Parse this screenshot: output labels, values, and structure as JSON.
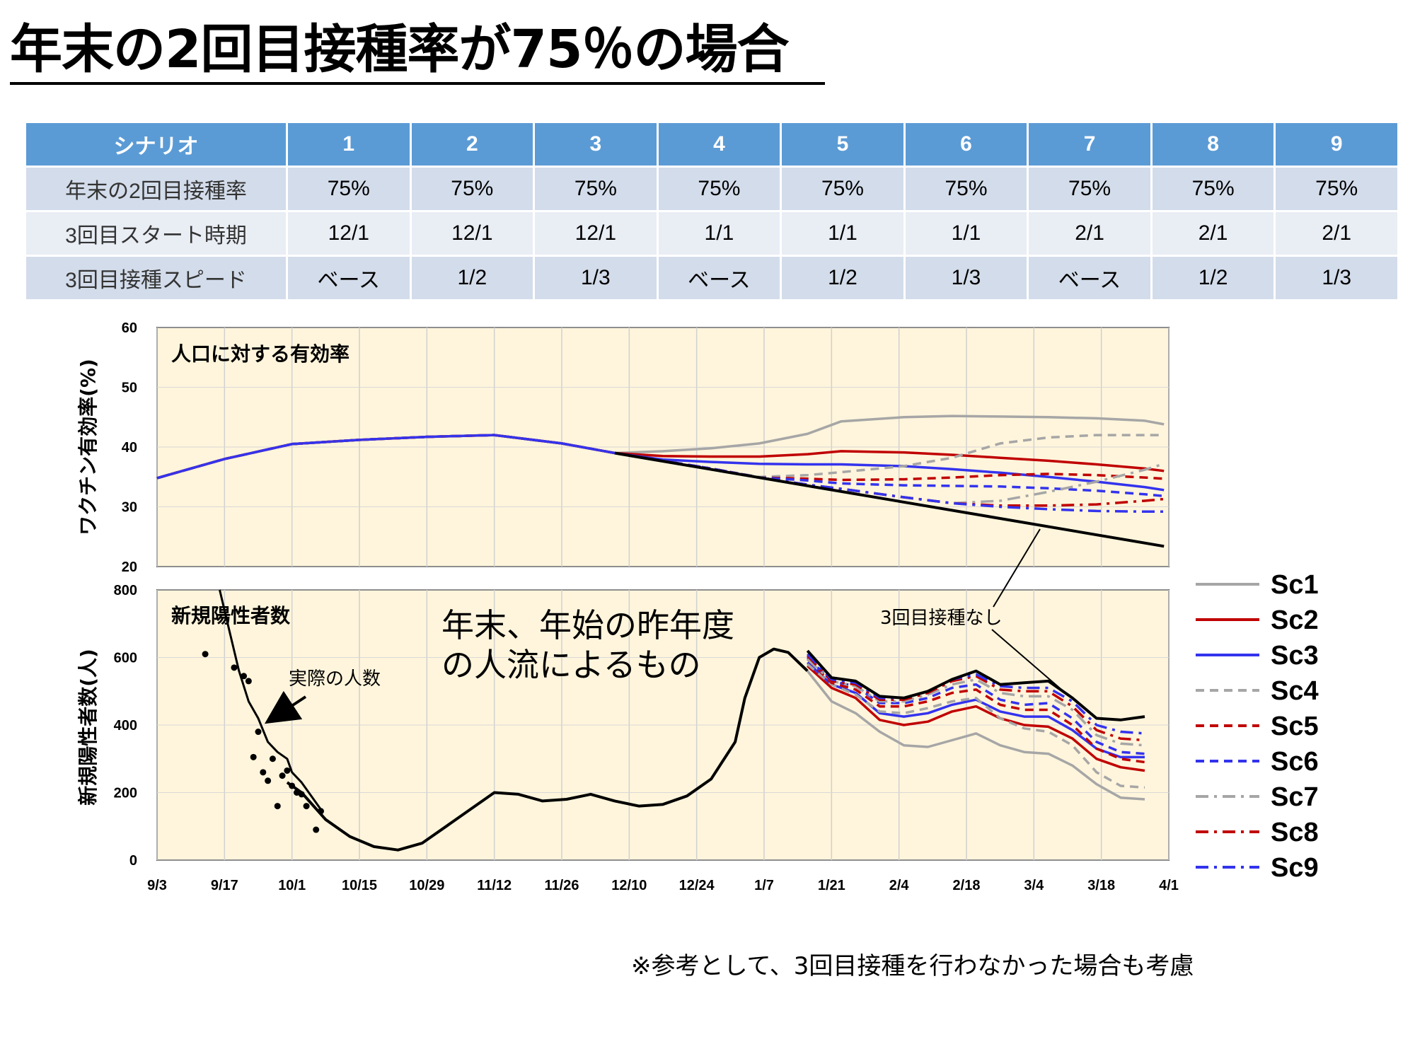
{
  "title": "年末の2回目接種率が75％の場合",
  "table": {
    "header": [
      "シナリオ",
      "1",
      "2",
      "3",
      "4",
      "5",
      "6",
      "7",
      "8",
      "9"
    ],
    "rows": [
      [
        "年末の2回目接種率",
        "75%",
        "75%",
        "75%",
        "75%",
        "75%",
        "75%",
        "75%",
        "75%",
        "75%"
      ],
      [
        "3回目スタート時期",
        "12/1",
        "12/1",
        "12/1",
        "1/1",
        "1/1",
        "1/1",
        "2/1",
        "2/1",
        "2/1"
      ],
      [
        "3回目接種スピード",
        "ベース",
        "1/2",
        "1/3",
        "ベース",
        "1/2",
        "1/3",
        "ベース",
        "1/2",
        "1/3"
      ]
    ]
  },
  "footnote": "※参考として、3回目接種を行わなかった場合も考慮",
  "colors": {
    "header_bg": "#5b9bd5",
    "panel_bg": "#fff5dc",
    "gray": "#a6a6a6",
    "red": "#c00000",
    "blue": "#3333ee",
    "black": "#000000"
  },
  "chart_data": [
    {
      "type": "line",
      "panel_title": "人口に対する有効率",
      "ylabel": "ワクチン有効率(%)",
      "ylim": [
        20,
        60
      ],
      "yticks": [
        20,
        30,
        40,
        50,
        60
      ],
      "xticks": [
        "9/3",
        "9/17",
        "10/1",
        "10/15",
        "10/29",
        "11/12",
        "11/26",
        "12/10",
        "12/24",
        "1/7",
        "1/21",
        "2/4",
        "2/18",
        "3/4",
        "3/18",
        "4/1"
      ],
      "x_days_range": [
        0,
        210
      ],
      "grid": true,
      "annotations": [
        {
          "text": "3回目接種なし",
          "points_to": "no-3rd-dose line"
        }
      ],
      "series": [
        {
          "name": "Sc1",
          "color": "gray",
          "dash": "solid",
          "x": [
            0,
            14,
            28,
            42,
            56,
            70,
            84,
            95,
            105,
            115,
            125,
            135,
            142,
            155,
            165,
            175,
            185,
            195,
            205,
            209
          ],
          "y": [
            34.8,
            38,
            40.5,
            41.2,
            41.7,
            42,
            40.6,
            39,
            39.3,
            39.8,
            40.6,
            42.2,
            44.3,
            45,
            45.2,
            45.1,
            45,
            44.8,
            44.4,
            43.8
          ]
        },
        {
          "name": "Sc2",
          "color": "red",
          "dash": "solid",
          "x": [
            0,
            14,
            28,
            42,
            56,
            70,
            84,
            95,
            105,
            115,
            125,
            135,
            142,
            155,
            165,
            175,
            185,
            195,
            205,
            209
          ],
          "y": [
            34.8,
            38,
            40.5,
            41.2,
            41.7,
            42,
            40.6,
            39,
            38.5,
            38.4,
            38.4,
            38.8,
            39.3,
            39.1,
            38.7,
            38.2,
            37.7,
            37.1,
            36.4,
            36
          ]
        },
        {
          "name": "Sc3",
          "color": "blue",
          "dash": "solid",
          "x": [
            0,
            14,
            28,
            42,
            56,
            70,
            84,
            95,
            105,
            115,
            125,
            135,
            142,
            155,
            165,
            175,
            185,
            195,
            205,
            209
          ],
          "y": [
            34.8,
            38,
            40.5,
            41.2,
            41.7,
            42,
            40.6,
            39,
            37.9,
            37.5,
            37.2,
            37.1,
            37.1,
            36.8,
            36.3,
            35.7,
            35,
            34.2,
            33.3,
            32.8
          ]
        },
        {
          "name": "Sc4",
          "color": "gray",
          "dash": "dash",
          "x": [
            0,
            14,
            28,
            42,
            56,
            70,
            84,
            95,
            105,
            115,
            125,
            135,
            142,
            155,
            165,
            175,
            185,
            195,
            205,
            209
          ],
          "y": [
            34.8,
            38,
            40.5,
            41.2,
            41.7,
            42,
            40.6,
            39,
            37.7,
            36.4,
            35,
            35.3,
            35.8,
            36.8,
            38.2,
            40.6,
            41.6,
            42,
            42,
            42
          ]
        },
        {
          "name": "Sc5",
          "color": "red",
          "dash": "dash",
          "x": [
            0,
            14,
            28,
            42,
            56,
            70,
            84,
            95,
            105,
            115,
            125,
            135,
            142,
            155,
            165,
            175,
            185,
            195,
            205,
            209
          ],
          "y": [
            34.8,
            38,
            40.5,
            41.2,
            41.7,
            42,
            40.6,
            39,
            37.7,
            36.4,
            34.9,
            34.7,
            34.5,
            34.6,
            34.9,
            35.3,
            35.5,
            35.3,
            34.9,
            34.7
          ]
        },
        {
          "name": "Sc6",
          "color": "blue",
          "dash": "dash",
          "x": [
            0,
            14,
            28,
            42,
            56,
            70,
            84,
            95,
            105,
            115,
            125,
            135,
            142,
            155,
            165,
            175,
            185,
            195,
            205,
            209
          ],
          "y": [
            34.8,
            38,
            40.5,
            41.2,
            41.7,
            42,
            40.6,
            39,
            37.7,
            36.4,
            34.9,
            34.4,
            33.9,
            33.6,
            33.5,
            33.4,
            33.1,
            32.7,
            32.1,
            31.8
          ]
        },
        {
          "name": "Sc7",
          "color": "gray",
          "dash": "dashdot",
          "x": [
            0,
            14,
            28,
            42,
            56,
            70,
            84,
            95,
            105,
            115,
            125,
            135,
            142,
            155,
            165,
            175,
            185,
            195,
            205,
            209
          ],
          "y": [
            34.8,
            38,
            40.5,
            41.2,
            41.7,
            42,
            40.6,
            39,
            37.7,
            36.4,
            34.9,
            33.7,
            33,
            31.6,
            30.6,
            31,
            32.5,
            34.2,
            36.2,
            37.2
          ]
        },
        {
          "name": "Sc8",
          "color": "red",
          "dash": "dashdot",
          "x": [
            0,
            14,
            28,
            42,
            56,
            70,
            84,
            95,
            105,
            115,
            125,
            135,
            142,
            155,
            165,
            175,
            185,
            195,
            205,
            209
          ],
          "y": [
            34.8,
            38,
            40.5,
            41.2,
            41.7,
            42,
            40.6,
            39,
            37.7,
            36.4,
            34.9,
            33.7,
            33,
            31.6,
            30.6,
            30.2,
            30.2,
            30.4,
            31,
            31.3
          ]
        },
        {
          "name": "Sc9",
          "color": "blue",
          "dash": "dashdot",
          "x": [
            0,
            14,
            28,
            42,
            56,
            70,
            84,
            95,
            105,
            115,
            125,
            135,
            142,
            155,
            165,
            175,
            185,
            195,
            205,
            209
          ],
          "y": [
            34.8,
            38,
            40.5,
            41.2,
            41.7,
            42,
            40.6,
            39,
            37.7,
            36.4,
            34.9,
            33.7,
            33,
            31.6,
            30.6,
            30,
            29.6,
            29.3,
            29.2,
            29.2
          ]
        },
        {
          "name": "",
          "role": "no-3rd-dose",
          "color": "black",
          "dash": "solid",
          "x": [
            95,
            209
          ],
          "y": [
            39,
            23.4
          ]
        }
      ]
    },
    {
      "type": "line",
      "panel_title": "新規陽性者数",
      "ylabel": "新規陽性者数(人)",
      "ylim": [
        0,
        800
      ],
      "yticks": [
        0,
        200,
        400,
        600,
        800
      ],
      "xticks": [
        "9/3",
        "9/17",
        "10/1",
        "10/15",
        "10/29",
        "11/12",
        "11/26",
        "12/10",
        "12/24",
        "1/7",
        "1/21",
        "2/4",
        "2/18",
        "3/4",
        "3/18",
        "4/1"
      ],
      "x_days_range": [
        0,
        210
      ],
      "grid": true,
      "annotations": [
        {
          "text": "実際の人数",
          "points_to": "actual cases"
        },
        {
          "text": "年末、年始の昨年度\nの人流によるもの",
          "points_to": "January peak"
        }
      ],
      "actual_points": {
        "x": [
          10,
          16,
          18,
          19,
          20,
          21,
          22,
          23,
          24,
          25,
          26,
          27,
          28,
          29,
          30,
          31,
          33,
          34
        ],
        "y": [
          610,
          570,
          545,
          530,
          305,
          380,
          260,
          235,
          300,
          160,
          250,
          265,
          220,
          200,
          195,
          160,
          90,
          145
        ]
      },
      "early_model": {
        "x": [
          13,
          15,
          17,
          19,
          21,
          23,
          25,
          27,
          28,
          30,
          32,
          34
        ],
        "y": [
          800,
          680,
          560,
          470,
          420,
          350,
          320,
          300,
          260,
          230,
          190,
          150
        ]
      },
      "base_curve": {
        "x": [
          27,
          30,
          35,
          40,
          45,
          50,
          55,
          60,
          65,
          70,
          75,
          80,
          85,
          90,
          95,
          100,
          105,
          110,
          115,
          120,
          122,
          125,
          128,
          131,
          135
        ],
        "y": [
          230,
          200,
          120,
          70,
          40,
          30,
          50,
          100,
          150,
          200,
          195,
          175,
          180,
          195,
          175,
          160,
          165,
          190,
          240,
          350,
          480,
          600,
          625,
          615,
          560
        ]
      },
      "series": [
        {
          "name": "Sc1",
          "color": "gray",
          "dash": "solid",
          "x": [
            135,
            140,
            145,
            150,
            155,
            160,
            165,
            170,
            175,
            180,
            185,
            190,
            195,
            200,
            205
          ],
          "y": [
            560,
            470,
            435,
            380,
            340,
            335,
            355,
            375,
            340,
            320,
            315,
            280,
            225,
            185,
            180
          ]
        },
        {
          "name": "Sc2",
          "color": "red",
          "dash": "solid",
          "x": [
            135,
            140,
            145,
            150,
            155,
            160,
            165,
            170,
            175,
            180,
            185,
            190,
            195,
            200,
            205
          ],
          "y": [
            575,
            510,
            480,
            415,
            400,
            410,
            440,
            455,
            420,
            400,
            395,
            360,
            300,
            275,
            265
          ]
        },
        {
          "name": "Sc3",
          "color": "blue",
          "dash": "solid",
          "x": [
            135,
            140,
            145,
            150,
            155,
            160,
            165,
            170,
            175,
            180,
            185,
            190,
            195,
            200,
            205
          ],
          "y": [
            585,
            520,
            495,
            435,
            425,
            435,
            460,
            475,
            440,
            425,
            425,
            385,
            330,
            305,
            305
          ]
        },
        {
          "name": "Sc4",
          "color": "gray",
          "dash": "dash",
          "x": [
            135,
            140,
            145,
            150,
            155,
            160,
            165,
            170,
            175,
            180,
            185,
            190,
            195,
            200,
            205
          ],
          "y": [
            580,
            520,
            490,
            440,
            435,
            450,
            470,
            480,
            420,
            390,
            380,
            340,
            260,
            220,
            215
          ]
        },
        {
          "name": "Sc5",
          "color": "red",
          "dash": "dash",
          "x": [
            135,
            140,
            145,
            150,
            155,
            160,
            165,
            170,
            175,
            180,
            185,
            190,
            195,
            200,
            205
          ],
          "y": [
            595,
            525,
            505,
            455,
            455,
            470,
            495,
            505,
            460,
            445,
            445,
            400,
            330,
            300,
            290
          ]
        },
        {
          "name": "Sc6",
          "color": "blue",
          "dash": "dash",
          "x": [
            135,
            140,
            145,
            150,
            155,
            160,
            165,
            170,
            175,
            180,
            185,
            190,
            195,
            200,
            205
          ],
          "y": [
            600,
            530,
            515,
            465,
            465,
            480,
            510,
            520,
            475,
            460,
            465,
            420,
            350,
            320,
            315
          ]
        },
        {
          "name": "Sc7",
          "color": "gray",
          "dash": "dashdot",
          "x": [
            135,
            140,
            145,
            150,
            155,
            160,
            165,
            170,
            175,
            180,
            185,
            190,
            195,
            200,
            205
          ],
          "y": [
            595,
            530,
            515,
            470,
            470,
            490,
            520,
            535,
            495,
            485,
            485,
            445,
            370,
            345,
            340
          ]
        },
        {
          "name": "Sc8",
          "color": "red",
          "dash": "dashdot",
          "x": [
            135,
            140,
            145,
            150,
            155,
            160,
            165,
            170,
            175,
            180,
            185,
            190,
            195,
            200,
            205
          ],
          "y": [
            605,
            530,
            520,
            475,
            475,
            495,
            530,
            545,
            505,
            500,
            500,
            455,
            385,
            360,
            355
          ]
        },
        {
          "name": "Sc9",
          "color": "blue",
          "dash": "dashdot",
          "x": [
            135,
            140,
            145,
            150,
            155,
            160,
            165,
            170,
            175,
            180,
            185,
            190,
            195,
            200,
            205
          ],
          "y": [
            610,
            535,
            525,
            480,
            480,
            500,
            535,
            550,
            515,
            510,
            510,
            470,
            400,
            380,
            375
          ]
        },
        {
          "name": "",
          "role": "no-3rd-dose",
          "color": "black",
          "dash": "solid",
          "x": [
            135,
            140,
            145,
            150,
            155,
            160,
            165,
            170,
            175,
            180,
            185,
            190,
            195,
            200,
            205
          ],
          "y": [
            620,
            540,
            530,
            485,
            480,
            500,
            535,
            560,
            520,
            525,
            530,
            480,
            420,
            415,
            425
          ]
        }
      ]
    }
  ],
  "legend": [
    {
      "label": "Sc1",
      "color": "gray",
      "dash": "solid"
    },
    {
      "label": "Sc2",
      "color": "red",
      "dash": "solid"
    },
    {
      "label": "Sc3",
      "color": "blue",
      "dash": "solid"
    },
    {
      "label": "Sc4",
      "color": "gray",
      "dash": "dash"
    },
    {
      "label": "Sc5",
      "color": "red",
      "dash": "dash"
    },
    {
      "label": "Sc6",
      "color": "blue",
      "dash": "dash"
    },
    {
      "label": "Sc7",
      "color": "gray",
      "dash": "dashdot"
    },
    {
      "label": "Sc8",
      "color": "red",
      "dash": "dashdot"
    },
    {
      "label": "Sc9",
      "color": "blue",
      "dash": "dashdot"
    }
  ]
}
